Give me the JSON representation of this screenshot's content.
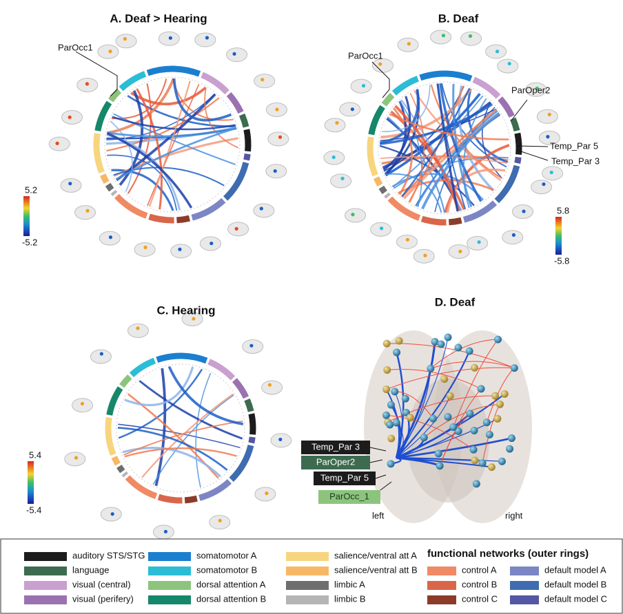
{
  "panels": [
    {
      "title": "A. Deaf > Hearing",
      "labels": [
        "ParOcc1"
      ],
      "colorbar": {
        "max": 5.2,
        "min": -5.2
      }
    },
    {
      "title": "B. Deaf",
      "labels": [
        "ParOcc1",
        "ParOper2",
        "Temp_Par 5",
        "Temp_Par 3"
      ],
      "colorbar": {
        "max": 5.8,
        "min": -5.8
      }
    },
    {
      "title": "C. Hearing",
      "colorbar": {
        "max": 5.4,
        "min": -5.4
      }
    },
    {
      "title": "D. Deaf",
      "labels": [
        "Temp_Par 3",
        "ParOper2",
        "Temp_Par 5",
        "ParOcc_1"
      ],
      "sides": [
        "left",
        "right"
      ]
    }
  ],
  "legend": {
    "title": "functional networks (outer rings)",
    "items": [
      {
        "name": "auditory STS/STG",
        "color": "#1c1c1c"
      },
      {
        "name": "language",
        "color": "#3d6b4f"
      },
      {
        "name": "visual (central)",
        "color": "#c9a0cf"
      },
      {
        "name": "visual (perifery)",
        "color": "#9b72b0"
      },
      {
        "name": "somatomotor A",
        "color": "#1b7fd0"
      },
      {
        "name": "somatomotor B",
        "color": "#2cbcd6"
      },
      {
        "name": "dorsal attention A",
        "color": "#8cc47e"
      },
      {
        "name": "dorsal attention B",
        "color": "#15876a"
      },
      {
        "name": "salience/ventral att A",
        "color": "#f7d57e"
      },
      {
        "name": "salience/ventral att B",
        "color": "#f7b865"
      },
      {
        "name": "limbic A",
        "color": "#6e6e6e"
      },
      {
        "name": "limbic B",
        "color": "#b5b5b5"
      },
      {
        "name": "control A",
        "color": "#f08a64"
      },
      {
        "name": "control B",
        "color": "#d9664a"
      },
      {
        "name": "control C",
        "color": "#8c3b2a"
      },
      {
        "name": "default model A",
        "color": "#7d86c4"
      },
      {
        "name": "default model B",
        "color": "#3f6cb0"
      },
      {
        "name": "default model C",
        "color": "#5457a3"
      }
    ]
  }
}
